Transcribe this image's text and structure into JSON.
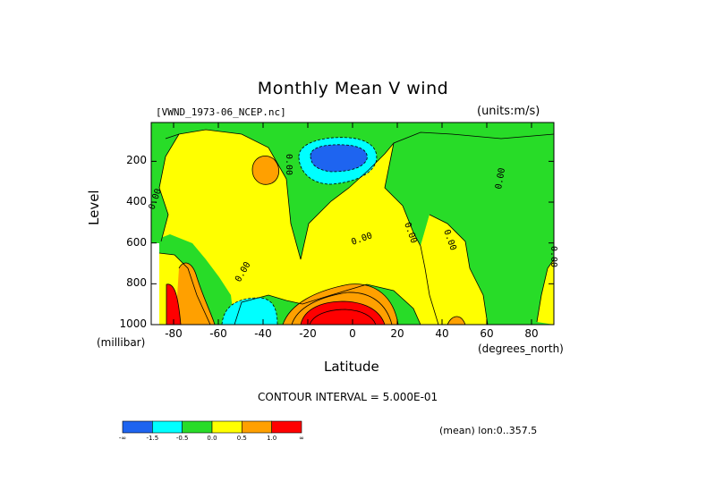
{
  "chart_data": {
    "type": "heatmap",
    "title": "Monthly Mean V wind",
    "dataset_label": "[VWND_1973-06_NCEP.nc]",
    "units_label": "(units:m/s)",
    "xlabel": "Latitude",
    "x_unit_label": "(degrees_north)",
    "ylabel": "Level",
    "y_unit_label": "(millibar)",
    "x_ticks": [
      "-80",
      "-60",
      "-40",
      "-20",
      "0",
      "20",
      "40",
      "60",
      "80"
    ],
    "x_tick_values": [
      -80,
      -60,
      -40,
      -20,
      0,
      20,
      40,
      60,
      80
    ],
    "y_ticks": [
      "200",
      "400",
      "600",
      "800",
      "1000"
    ],
    "y_tick_values": [
      200,
      400,
      600,
      800,
      1000
    ],
    "xlim": [
      -90,
      90
    ],
    "ylim": [
      1000,
      10
    ],
    "contour_labels": [
      "0.00"
    ],
    "contour_interval_label": "CONTOUR INTERVAL = 5.000E-01",
    "mean_label": "(mean) lon:0..357.5",
    "colorbar": {
      "colors": [
        "#1e64f0",
        "#00ffff",
        "#28dc28",
        "#ffff00",
        "#ffa000",
        "#ff0000"
      ],
      "tick_labels": [
        "-∞",
        "-1.5",
        "-0.5",
        "0.0",
        "0.5",
        "1.0",
        "∞"
      ]
    }
  }
}
